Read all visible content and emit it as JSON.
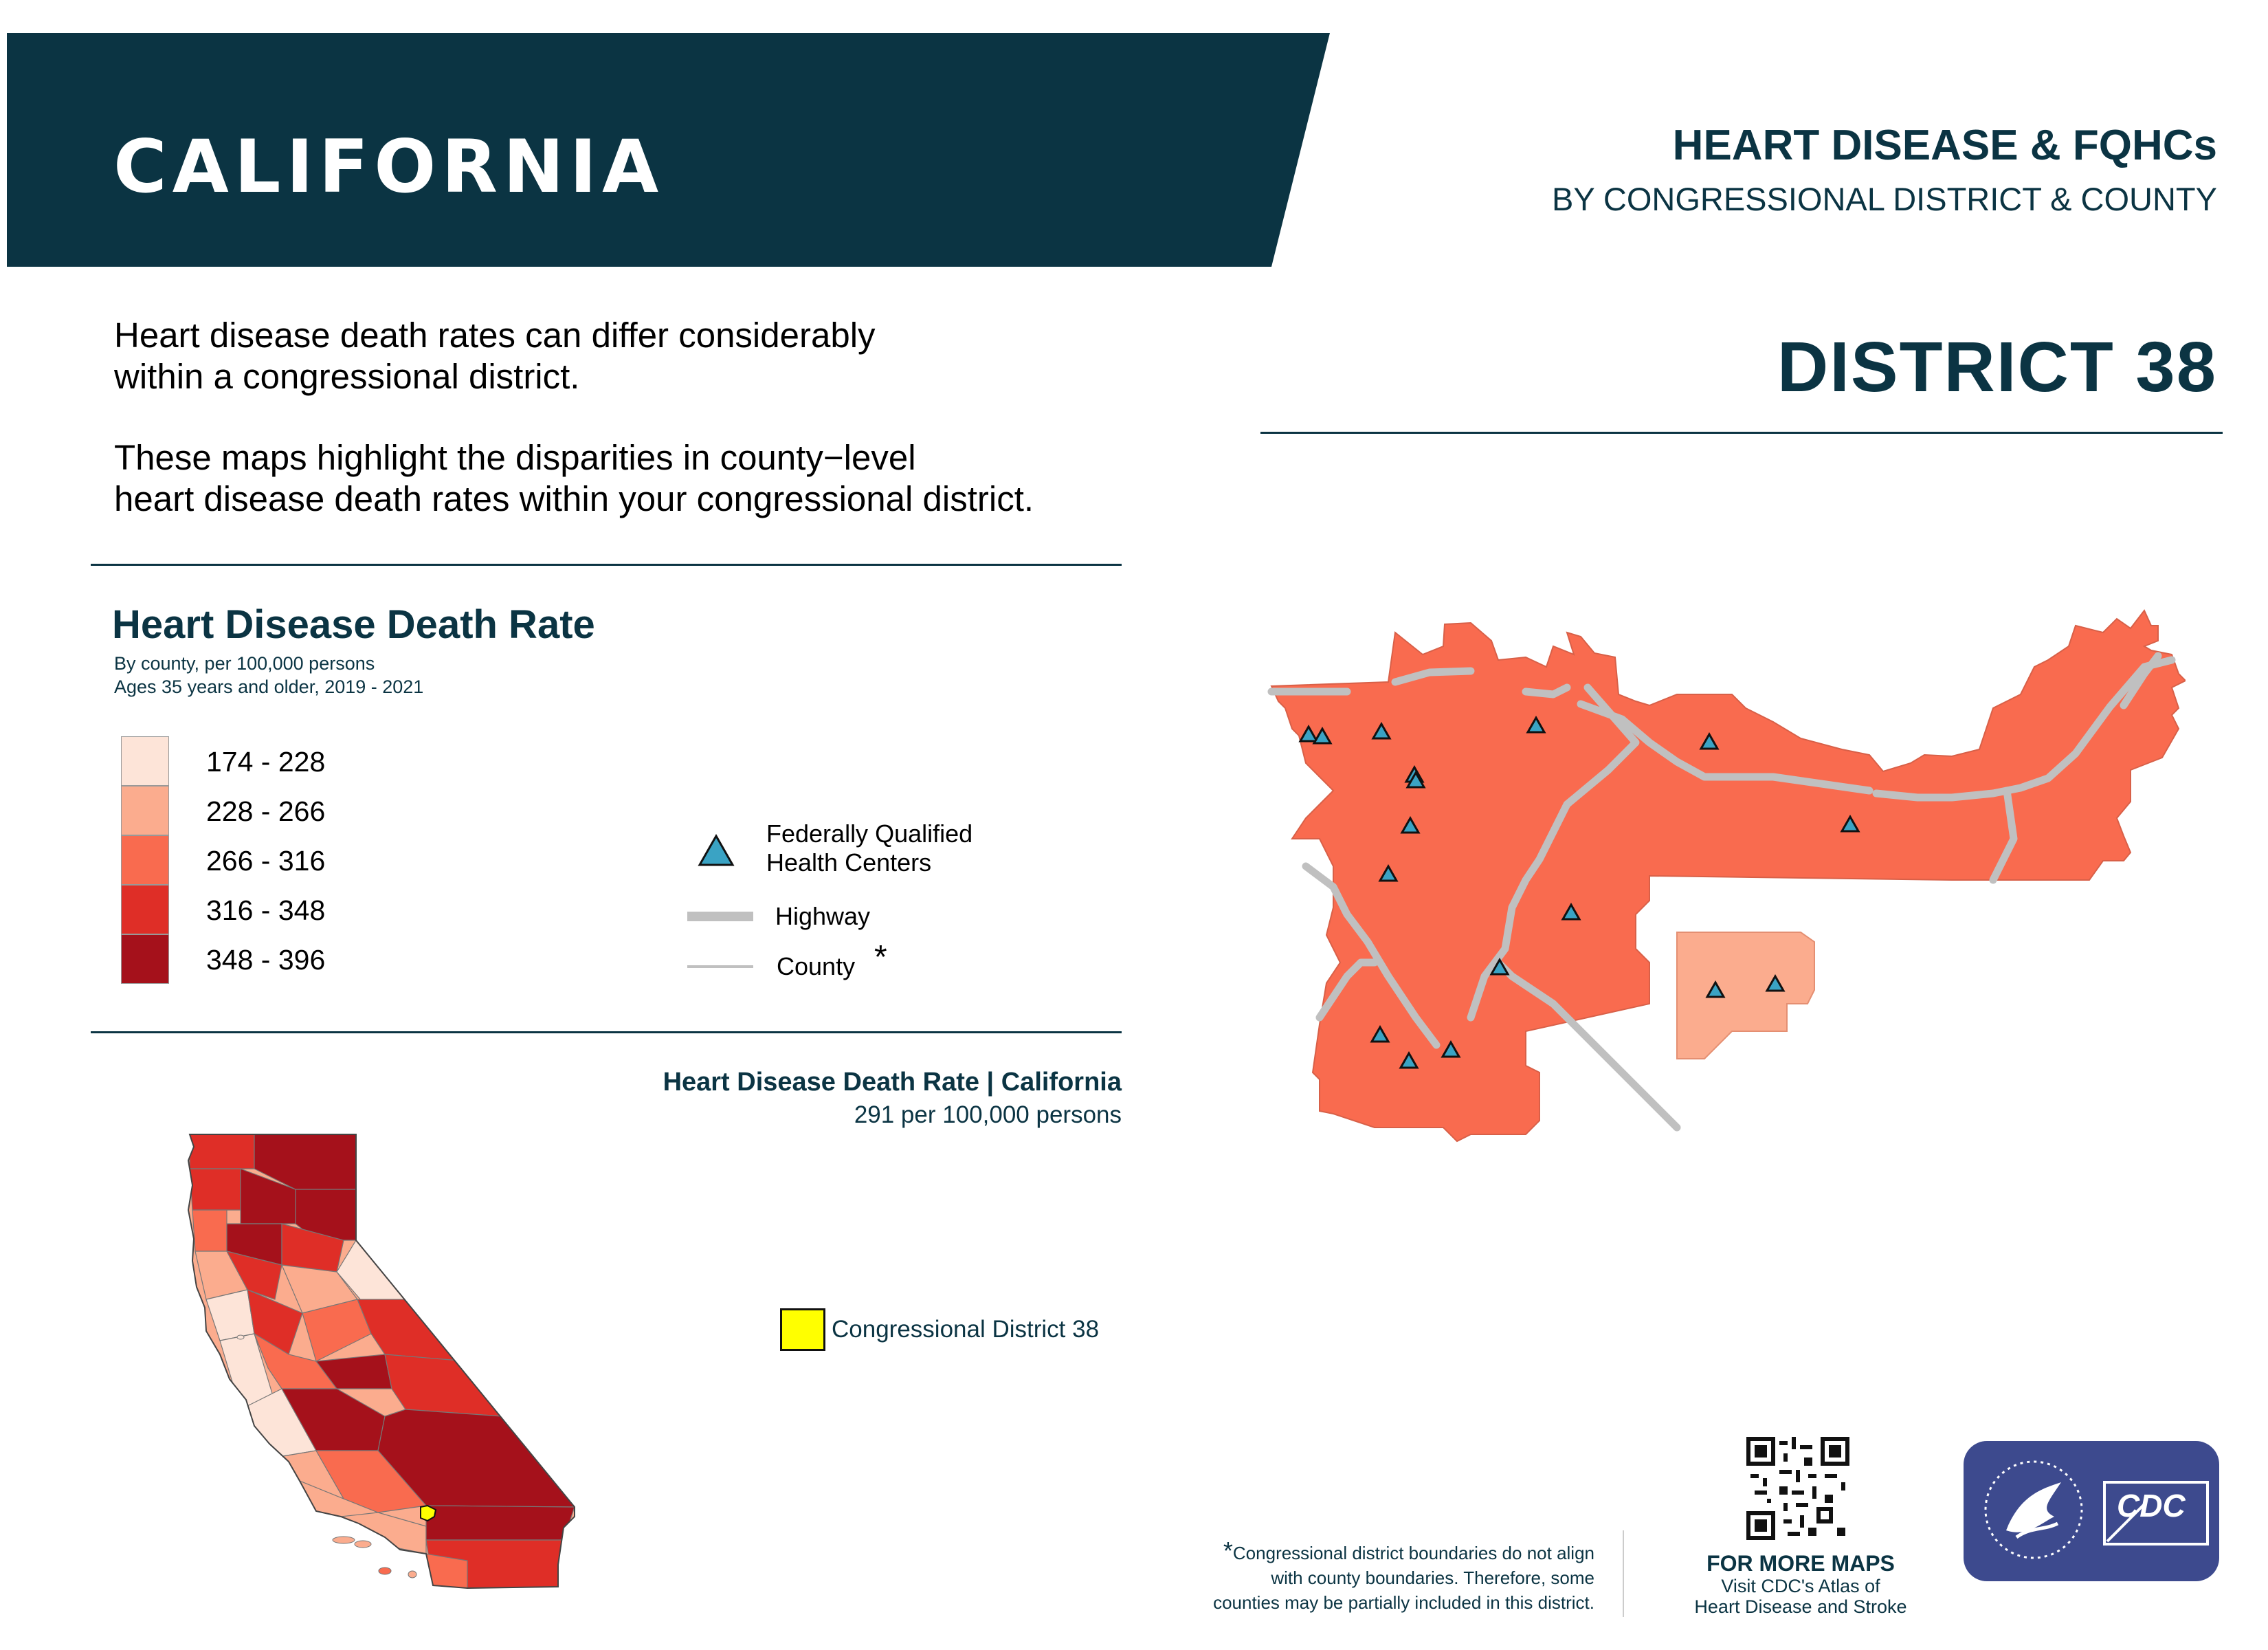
{
  "header": {
    "state": "CALIFORNIA",
    "title": "HEART DISEASE & FQHCs",
    "subtitle": "BY CONGRESSIONAL DISTRICT & COUNTY",
    "district": "DISTRICT  38",
    "banner_color": "#0b3443"
  },
  "intro": {
    "paragraph1_line1": "Heart disease death rates can differ considerably",
    "paragraph1_line2": "within a congressional district.",
    "paragraph2_line1": "These maps highlight the disparities in county−level",
    "paragraph2_line2": "heart disease death rates within your congressional district."
  },
  "legend": {
    "title": "Heart Disease Death Rate",
    "sub1": "By county, per 100,000 persons",
    "sub2": "Ages 35 years and older, 2019 - 2021",
    "bins": [
      {
        "label": "174 - 228",
        "color": "#fde4d8"
      },
      {
        "label": "228 - 266",
        "color": "#fbac8e"
      },
      {
        "label": "266 - 316",
        "color": "#f96b4f"
      },
      {
        "label": "316 - 348",
        "color": "#df2e27"
      },
      {
        "label": "348 - 396",
        "color": "#a5111b"
      }
    ],
    "fqhc_line1": "Federally Qualified",
    "fqhc_line2": "Health Centers",
    "highway": "Highway",
    "county": "County",
    "county_star": "*",
    "fqhc_color": "#3aa3c4",
    "highway_color": "#c0c0c0"
  },
  "state_map": {
    "title": "Heart Disease Death Rate | California",
    "rate": "291 per 100,000 persons",
    "district_label": "Congressional District 38",
    "district_color": "#ffff00"
  },
  "district_map": {
    "fill_main": "#f96b4f",
    "fill_low": "#fbac8e",
    "fqhc_count": 16
  },
  "footer": {
    "star": "*",
    "footnote_line1": "Congressional district boundaries do not align",
    "footnote_line2": "with county boundaries. Therefore, some",
    "footnote_line3": "counties may be partially included in this district.",
    "more_maps_title": "FOR MORE MAPS",
    "more_maps_line1": "Visit CDC's Atlas of",
    "more_maps_line2": "Heart Disease and Stroke",
    "cdc_logo_text": "CDC",
    "logo_color": "#3d4a8e"
  }
}
